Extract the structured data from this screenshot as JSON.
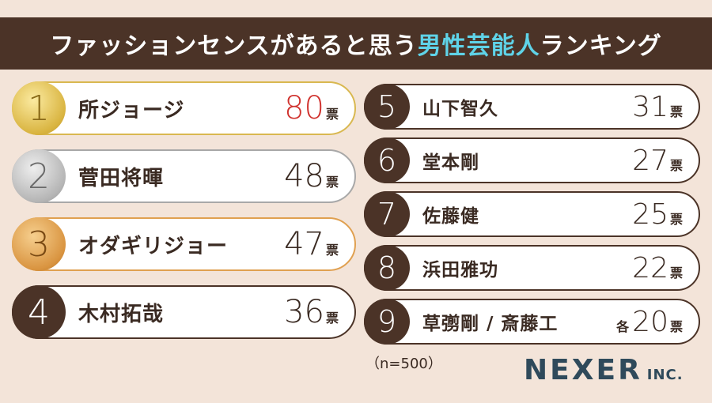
{
  "header": {
    "title_pre": "ファッションセンスがあると思う",
    "title_highlight": "男性芸能人",
    "title_post": "ランキング"
  },
  "rankings": [
    {
      "rank": "1",
      "name": "所ジョージ",
      "votes": "80",
      "unit": "票"
    },
    {
      "rank": "2",
      "name": "菅田将暉",
      "votes": "48",
      "unit": "票"
    },
    {
      "rank": "3",
      "name": "オダギリジョー",
      "votes": "47",
      "unit": "票"
    },
    {
      "rank": "4",
      "name": "木村拓哉",
      "votes": "36",
      "unit": "票"
    },
    {
      "rank": "5",
      "name": "山下智久",
      "votes": "31",
      "unit": "票"
    },
    {
      "rank": "6",
      "name": "堂本剛",
      "votes": "27",
      "unit": "票"
    },
    {
      "rank": "7",
      "name": "佐藤健",
      "votes": "25",
      "unit": "票"
    },
    {
      "rank": "8",
      "name": "浜田雅功",
      "votes": "22",
      "unit": "票"
    },
    {
      "rank": "9",
      "name": "草彅剛 / 斎藤工",
      "prefix": "各",
      "votes": "20",
      "unit": "票"
    }
  ],
  "note": "（n=500）",
  "logo": {
    "main": "NEXER",
    "sub": "INC."
  }
}
